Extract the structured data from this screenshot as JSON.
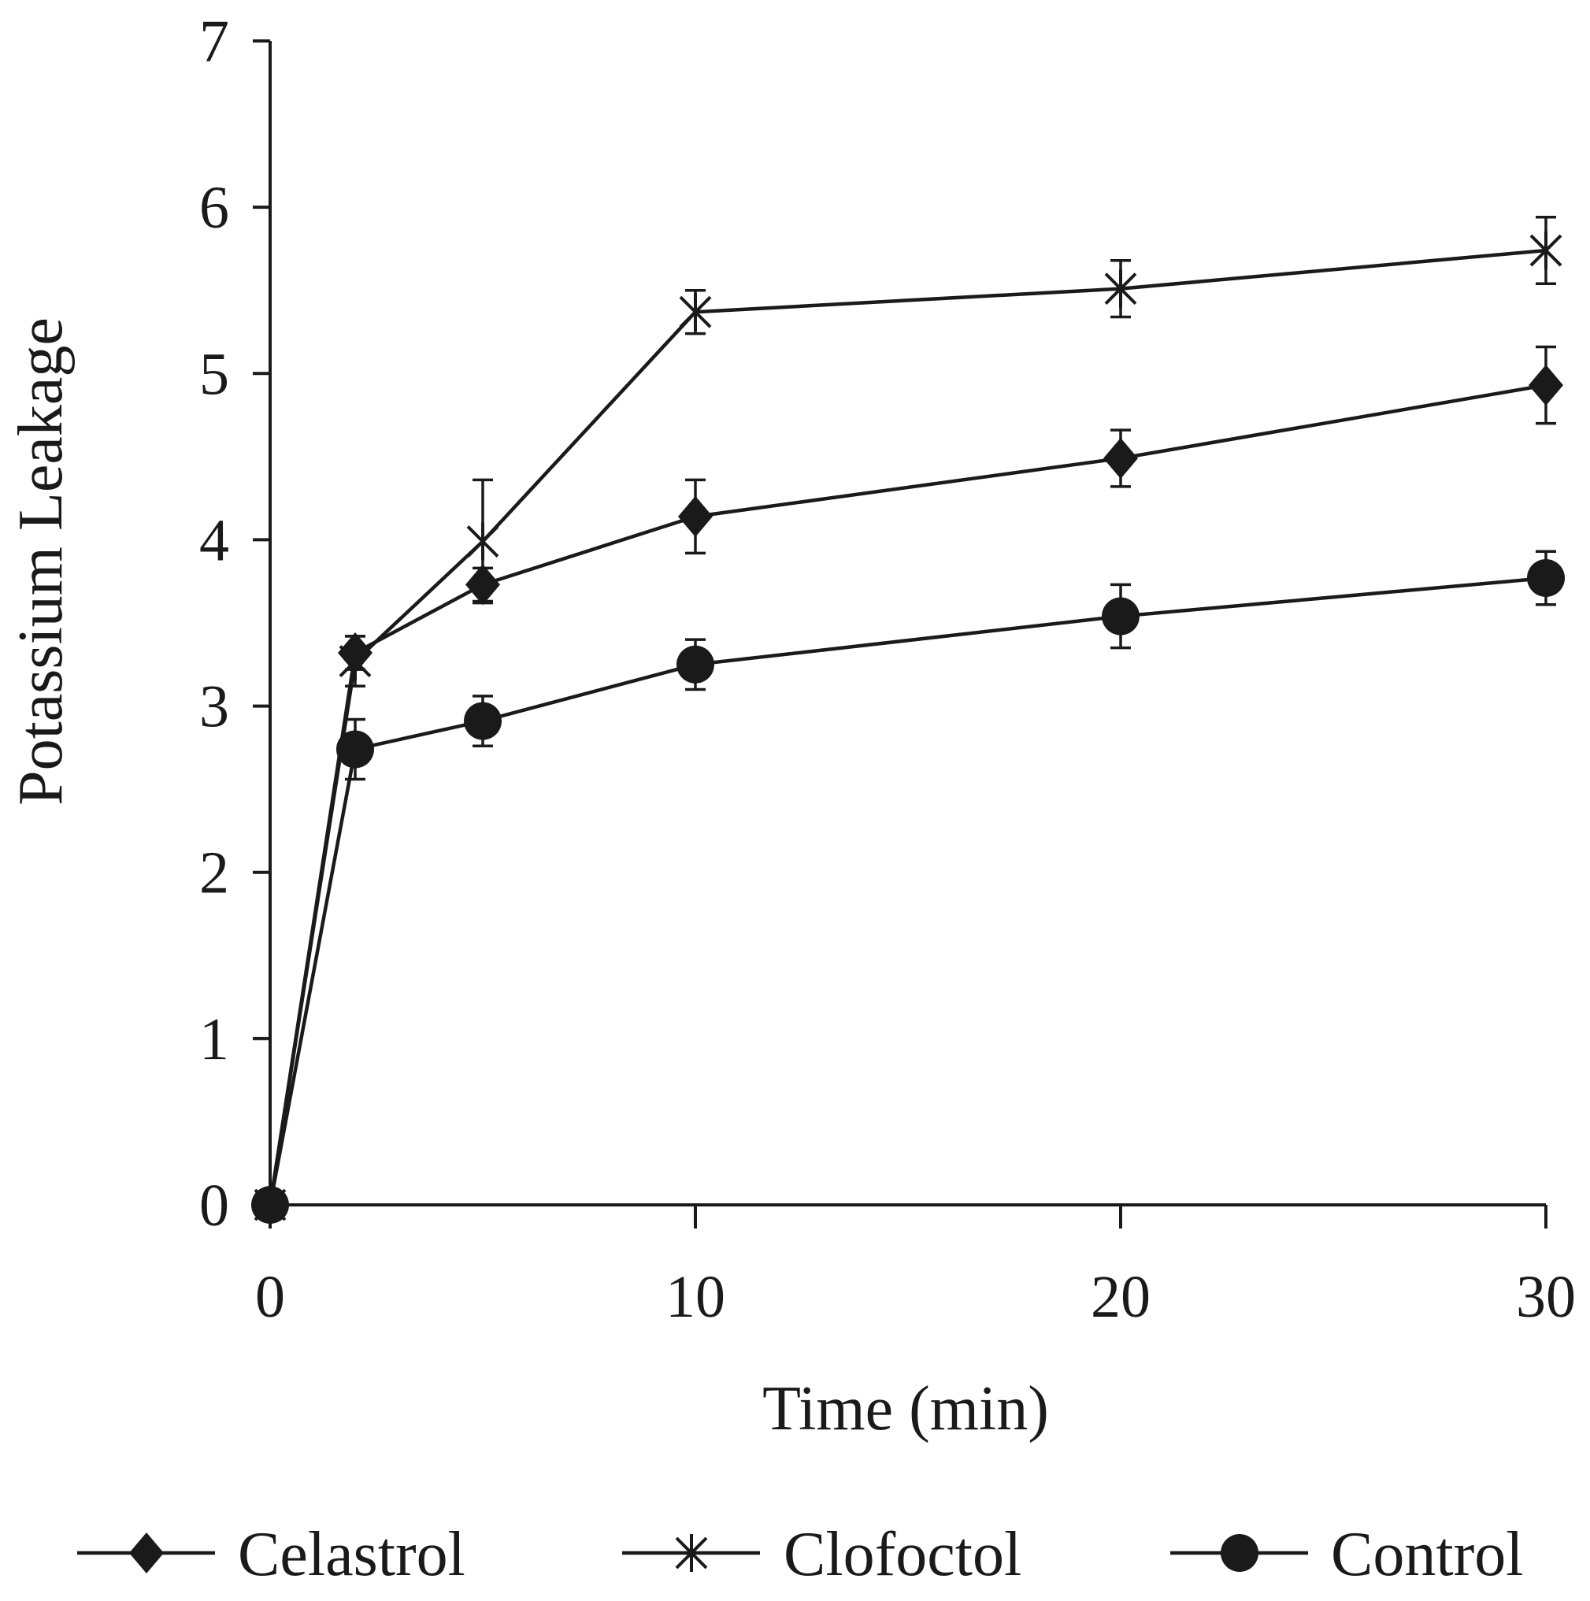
{
  "chart_data": {
    "type": "line",
    "title": "",
    "xlabel": "Time (min)",
    "ylabel": "Potassium Leakage",
    "xlim": [
      0,
      30
    ],
    "ylim": [
      0,
      7
    ],
    "x_ticks": [
      0,
      10,
      20,
      30
    ],
    "x_tick_labels": [
      "0",
      "10",
      "20",
      "30"
    ],
    "y_ticks": [
      0,
      1,
      2,
      3,
      4,
      5,
      6,
      7
    ],
    "y_tick_labels": [
      "0",
      "1",
      "2",
      "3",
      "4",
      "5",
      "6",
      "7"
    ],
    "grid": false,
    "legend_position": "bottom",
    "x": [
      0,
      2,
      5,
      10,
      20,
      30
    ],
    "series": [
      {
        "name": "Celastrol",
        "marker": "diamond",
        "values": [
          0,
          3.32,
          3.73,
          4.14,
          4.49,
          4.93
        ],
        "errors": [
          0,
          0.1,
          0.1,
          0.22,
          0.17,
          0.23
        ]
      },
      {
        "name": "Clofoctol",
        "marker": "star",
        "values": [
          0,
          3.27,
          3.99,
          5.37,
          5.51,
          5.74
        ],
        "errors": [
          0,
          0.15,
          0.37,
          0.13,
          0.17,
          0.2
        ]
      },
      {
        "name": "Control",
        "marker": "circle",
        "values": [
          0,
          2.74,
          2.91,
          3.25,
          3.54,
          3.77
        ],
        "errors": [
          0,
          0.18,
          0.15,
          0.15,
          0.19,
          0.16
        ]
      }
    ],
    "colors": {
      "line": "#1a1a1a",
      "background": "#ffffff"
    }
  }
}
